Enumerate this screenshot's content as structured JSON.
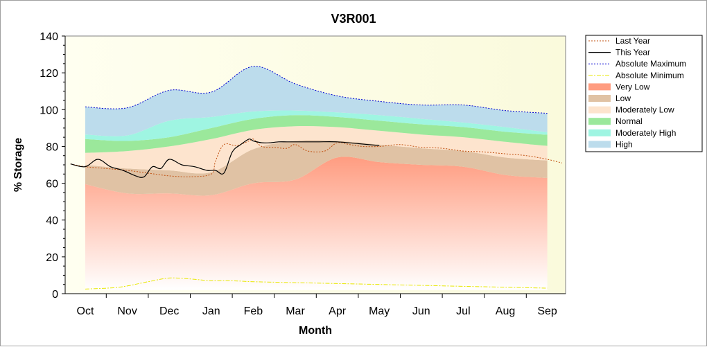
{
  "chart_data": {
    "type": "area",
    "title": "V3R001",
    "xlabel": "Month",
    "ylabel": "% Storage",
    "ylim": [
      0,
      140
    ],
    "yticks": [
      0,
      20,
      40,
      60,
      80,
      100,
      120,
      140
    ],
    "categories": [
      "Oct",
      "Nov",
      "Dec",
      "Jan",
      "Feb",
      "Mar",
      "Apr",
      "May",
      "Jun",
      "Jul",
      "Aug",
      "Sep"
    ],
    "grid": false,
    "legend_position": "right",
    "bands": [
      {
        "name": "Very Low",
        "color_top": "#ff9c80",
        "color_bottom": "#ffffff",
        "lower": [
          2,
          2,
          2,
          2,
          2,
          2,
          2,
          2,
          2,
          2,
          2,
          2,
          2
        ],
        "upper": [
          59.5,
          54.5,
          54.5,
          53.5,
          60,
          62,
          74,
          71.5,
          70,
          69,
          64.5,
          63,
          63
        ]
      },
      {
        "name": "Low",
        "color": "#e0c2a4",
        "lower": [
          59.5,
          54.5,
          54.5,
          53.5,
          60,
          62,
          74,
          71.5,
          70,
          69,
          64.5,
          63,
          63
        ],
        "upper": [
          70,
          68,
          67,
          66,
          78.5,
          83,
          83,
          81,
          79,
          77.5,
          74,
          72.5,
          72.5
        ]
      },
      {
        "name": "Moderately Low",
        "color": "#fde4ce",
        "lower": [
          70,
          68,
          67,
          66,
          78.5,
          83,
          83,
          81,
          79,
          77.5,
          74,
          72.5,
          72.5
        ],
        "upper": [
          76.5,
          77.5,
          80,
          84,
          89,
          91,
          90.5,
          88.5,
          86.5,
          85,
          82.5,
          80.5,
          80.5
        ]
      },
      {
        "name": "Normal",
        "color": "#9be89b",
        "lower": [
          76.5,
          77.5,
          80,
          84,
          89,
          91,
          90.5,
          88.5,
          86.5,
          85,
          82.5,
          80.5,
          80.5
        ],
        "upper": [
          84,
          83,
          85,
          90,
          95,
          97,
          96,
          94,
          92,
          90.5,
          88,
          86.5,
          86.5
        ]
      },
      {
        "name": "Moderately High",
        "color": "#9ff5e2",
        "lower": [
          84,
          83,
          85,
          90,
          95,
          97,
          96,
          94,
          92,
          90.5,
          88,
          86.5,
          86.5
        ],
        "upper": [
          86.5,
          86,
          94,
          96,
          99,
          99.5,
          98.5,
          97,
          95,
          93,
          90.5,
          88,
          88
        ]
      },
      {
        "name": "High",
        "color": "#bcdcec",
        "lower": [
          86.5,
          86,
          94,
          96,
          99,
          99.5,
          98.5,
          97,
          95,
          93,
          90.5,
          88,
          88
        ],
        "upper": [
          101.5,
          101,
          110.5,
          109.5,
          123.5,
          114,
          107.5,
          104.5,
          102.5,
          102.5,
          99.5,
          98,
          98
        ]
      }
    ],
    "band_x": [
      0,
      1,
      2,
      3,
      4,
      5,
      6,
      7,
      8,
      9,
      10,
      10.9,
      11
    ],
    "series": [
      {
        "name": "Last Year",
        "color": "#c05010",
        "style": "dotted",
        "x": [
          -0.35,
          0,
          0.5,
          1,
          1.5,
          2,
          2.5,
          3,
          3.1,
          3.3,
          3.6,
          3.9,
          4,
          4.2,
          4.5,
          4.8,
          5,
          5.3,
          5.7,
          6,
          6.3,
          6.6,
          7,
          7.5,
          8,
          8.5,
          9,
          9.5,
          10,
          10.5,
          11,
          11.35
        ],
        "y": [
          70.5,
          69,
          68,
          67,
          65.5,
          64,
          63.5,
          65,
          72,
          81,
          80.5,
          83,
          84,
          80,
          79.5,
          79,
          81,
          77.5,
          77.5,
          82,
          81,
          80,
          80,
          81,
          79.5,
          79,
          77.5,
          77,
          76,
          75,
          73,
          71
        ]
      },
      {
        "name": "This Year",
        "color": "#000000",
        "style": "solid",
        "x": [
          -0.35,
          0,
          0.3,
          0.6,
          0.9,
          1.2,
          1.4,
          1.6,
          1.8,
          2,
          2.3,
          2.6,
          2.9,
          3.1,
          3.3,
          3.5,
          3.7,
          3.9,
          4,
          4.2,
          4.4,
          4.6,
          4.8,
          5,
          5.5,
          6,
          6.5,
          7
        ],
        "y": [
          70.5,
          69,
          73,
          69,
          67,
          64,
          63.5,
          69,
          68,
          73,
          70,
          69,
          67,
          67,
          65.5,
          77,
          81,
          84,
          83,
          82,
          82,
          82.5,
          82.5,
          82.5,
          82.5,
          82.5,
          81.5,
          80.5
        ]
      },
      {
        "name": "Absolute Maximum",
        "color": "#0000d0",
        "style": "dotted",
        "x": [
          0,
          1,
          2,
          3,
          4,
          5,
          6,
          7,
          8,
          9,
          10,
          11
        ],
        "y": [
          101.5,
          101,
          110.5,
          109.5,
          123.5,
          114,
          107.5,
          104.5,
          102.5,
          102.5,
          99.5,
          98
        ]
      },
      {
        "name": "Absolute Minimum",
        "color": "#e8e800",
        "style": "dashdot",
        "x": [
          0,
          0.8,
          1.5,
          2,
          2.5,
          3,
          3.5,
          4,
          5,
          6,
          7,
          8,
          9,
          10,
          11
        ],
        "y": [
          2.5,
          3.5,
          6.5,
          8.5,
          8,
          7,
          7,
          6.5,
          6,
          5.5,
          5,
          4.5,
          4,
          3.5,
          3
        ]
      }
    ],
    "legend": [
      {
        "label": "Last Year",
        "kind": "line",
        "color": "#c05010",
        "style": "dotted"
      },
      {
        "label": "This Year",
        "kind": "line",
        "color": "#000000",
        "style": "solid"
      },
      {
        "label": "Absolute Maximum",
        "kind": "line",
        "color": "#0000d0",
        "style": "dotted"
      },
      {
        "label": "Absolute Minimum",
        "kind": "line",
        "color": "#e8e800",
        "style": "dashdot"
      },
      {
        "label": "Very Low",
        "kind": "fill",
        "color": "#ff9c80"
      },
      {
        "label": "Low",
        "kind": "fill",
        "color": "#e0c2a4"
      },
      {
        "label": "Moderately Low",
        "kind": "fill",
        "color": "#fde4ce"
      },
      {
        "label": "Normal",
        "kind": "fill",
        "color": "#9be89b"
      },
      {
        "label": "Moderately High",
        "kind": "fill",
        "color": "#9ff5e2"
      },
      {
        "label": "High",
        "kind": "fill",
        "color": "#bcdcec"
      }
    ],
    "plot_background": "#fdfde6"
  }
}
